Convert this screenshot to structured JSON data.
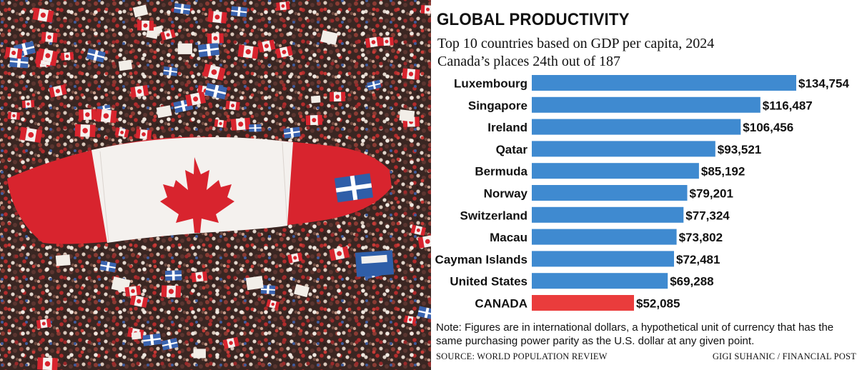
{
  "colors": {
    "bar": "#3f8ad0",
    "highlight": "#ea3c3c",
    "text": "#111111",
    "flag_red": "#d8242e",
    "flag_white": "#f4f1ee"
  },
  "graphic": {
    "title": "GLOBAL PRODUCTIVITY",
    "subtitle_line1": "Top 10 countries based on GDP per capita, 2024",
    "subtitle_line2": "Canada’s places 24th out of 187",
    "note": "Note: Figures are in international dollars, a hypothetical unit of currency that has the same purchasing power parity as the U.S. dollar at any given point.",
    "source": "SOURCE: WORLD POPULATION REVIEW",
    "credit": "GIGI SUHANIC / FINANCIAL POST"
  },
  "chart_data": {
    "type": "bar",
    "orientation": "horizontal",
    "categories": [
      "Luxembourg",
      "Singapore",
      "Ireland",
      "Qatar",
      "Bermuda",
      "Norway",
      "Switzerland",
      "Macau",
      "Cayman Islands",
      "United States",
      "CANADA"
    ],
    "values": [
      134754,
      116487,
      106456,
      93521,
      85192,
      79201,
      77324,
      73802,
      72481,
      69288,
      52085
    ],
    "value_labels": [
      "$134,754",
      "$116,487",
      "$106,456",
      "$93,521",
      "$85,192",
      "$79,201",
      "$77,324",
      "$73,802",
      "$72,481",
      "$69,288",
      "$52,085"
    ],
    "highlight_category": "CANADA",
    "title": "GLOBAL PRODUCTIVITY",
    "xlabel": "",
    "ylabel": "",
    "grid": false,
    "legend": "none"
  }
}
